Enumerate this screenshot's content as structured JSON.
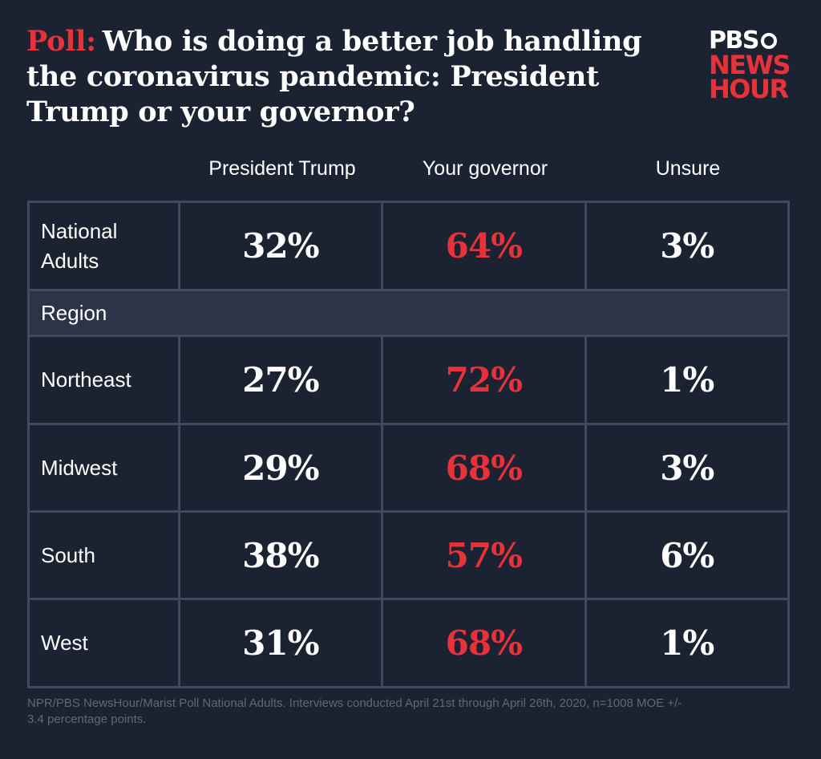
{
  "title": {
    "kicker": "Poll:",
    "text": "Who is doing a better job handling the coronavirus pandemic: President Trump or your governor?"
  },
  "logo": {
    "line1": "PBS",
    "line2": "NEWS",
    "line3": "HOUR"
  },
  "chart_data": {
    "type": "table",
    "title": "Poll: Who is doing a better job handling the coronavirus pandemic: President Trump or your governor?",
    "columns": [
      "President Trump",
      "Your governor",
      "Unsure"
    ],
    "group_label": "Region",
    "rows": [
      {
        "label": "National Adults",
        "values": [
          "32%",
          "64%",
          "3%"
        ]
      },
      {
        "label": "Northeast",
        "values": [
          "27%",
          "72%",
          "1%"
        ]
      },
      {
        "label": "Midwest",
        "values": [
          "29%",
          "68%",
          "3%"
        ]
      },
      {
        "label": "South",
        "values": [
          "38%",
          "57%",
          "6%"
        ]
      },
      {
        "label": "West",
        "values": [
          "31%",
          "68%",
          "1%"
        ]
      }
    ],
    "accent_column": 1,
    "colors": {
      "background": "#1b2232",
      "accent": "#e8323a",
      "grid": "#3f4a60",
      "group_band": "#2c3547"
    }
  },
  "footnote": "NPR/PBS NewsHour/Marist Poll National Adults. Interviews conducted April 21st through April 26th, 2020, n=1008 MOE +/- 3.4 percentage points."
}
